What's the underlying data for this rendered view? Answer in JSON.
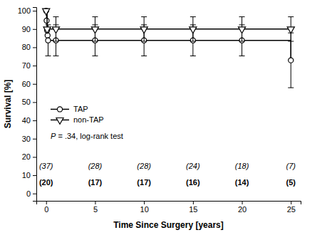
{
  "chart_data": {
    "type": "line",
    "x_label": "Time Since Surgery [years]",
    "y_label": "Survival [%]",
    "xlim": [
      -1,
      26
    ],
    "xticks": [
      0,
      5,
      10,
      15,
      20,
      25
    ],
    "ylim": [
      -4,
      102
    ],
    "yticks": [
      0,
      10,
      20,
      30,
      40,
      50,
      60,
      70,
      80,
      90,
      100
    ],
    "grid": false,
    "legend": "left",
    "line_style": "step",
    "annotation": "P = .34, log-rank test",
    "at_risk_x": [
      0,
      5,
      10,
      15,
      20,
      25
    ],
    "series": [
      {
        "name": "TAP",
        "color": "#000000",
        "marker": "circle",
        "x": [
          0,
          0.05,
          0.1,
          0.15,
          0.2,
          1,
          5,
          10,
          15,
          20,
          25
        ],
        "values": [
          100,
          94.6,
          89.2,
          86.5,
          83.8,
          83.8,
          83.8,
          83.8,
          83.8,
          83.8,
          72.9
        ],
        "errors": [
          null,
          null,
          null,
          null,
          8.5,
          8.5,
          8.5,
          8.5,
          8.5,
          8.5,
          15
        ],
        "at_risk_labels": [
          "(37)",
          "(28)",
          "(28)",
          "(24)",
          "(18)",
          "(7)"
        ]
      },
      {
        "name": "non-TAP",
        "color": "#000000",
        "marker": "triangle-down",
        "x": [
          0,
          0.1,
          1,
          5,
          10,
          15,
          20,
          25
        ],
        "values": [
          100,
          90,
          90,
          90,
          90,
          90,
          90,
          90
        ],
        "errors": [
          null,
          null,
          6.7,
          6.7,
          6.7,
          6.7,
          6.7,
          6.7
        ],
        "at_risk_labels": [
          "(20)",
          "(17)",
          "(17)",
          "(16)",
          "(14)",
          "(5)"
        ]
      }
    ]
  }
}
